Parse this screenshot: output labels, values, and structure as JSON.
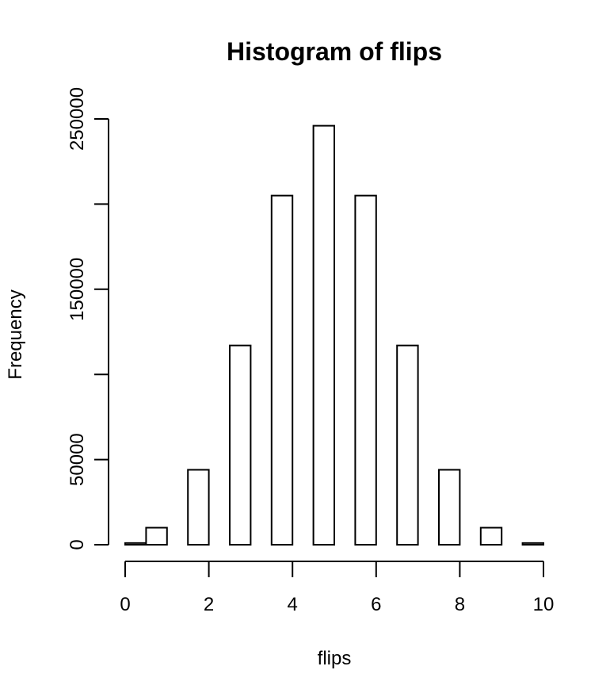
{
  "chart_data": {
    "type": "bar",
    "title": "Histogram of flips",
    "xlabel": "flips",
    "ylabel": "Frequency",
    "bins": [
      {
        "start": 0.0,
        "end": 0.5,
        "value": 1000
      },
      {
        "start": 0.5,
        "end": 1.0,
        "value": 10000
      },
      {
        "start": 1.0,
        "end": 1.5,
        "value": 0
      },
      {
        "start": 1.5,
        "end": 2.0,
        "value": 44000
      },
      {
        "start": 2.0,
        "end": 2.5,
        "value": 0
      },
      {
        "start": 2.5,
        "end": 3.0,
        "value": 117000
      },
      {
        "start": 3.0,
        "end": 3.5,
        "value": 0
      },
      {
        "start": 3.5,
        "end": 4.0,
        "value": 205000
      },
      {
        "start": 4.0,
        "end": 4.5,
        "value": 0
      },
      {
        "start": 4.5,
        "end": 5.0,
        "value": 246000
      },
      {
        "start": 5.0,
        "end": 5.5,
        "value": 0
      },
      {
        "start": 5.5,
        "end": 6.0,
        "value": 205000
      },
      {
        "start": 6.0,
        "end": 6.5,
        "value": 0
      },
      {
        "start": 6.5,
        "end": 7.0,
        "value": 117000
      },
      {
        "start": 7.0,
        "end": 7.5,
        "value": 0
      },
      {
        "start": 7.5,
        "end": 8.0,
        "value": 44000
      },
      {
        "start": 8.0,
        "end": 8.5,
        "value": 0
      },
      {
        "start": 8.5,
        "end": 9.0,
        "value": 10000
      },
      {
        "start": 9.0,
        "end": 9.5,
        "value": 0
      },
      {
        "start": 9.5,
        "end": 10.0,
        "value": 1000
      }
    ],
    "xlim": [
      0,
      10
    ],
    "ylim": [
      0,
      250000
    ],
    "xticks": [
      0,
      2,
      4,
      6,
      8,
      10
    ],
    "yticks": [
      0,
      50000,
      100000,
      150000,
      200000,
      250000
    ],
    "ytick_labels": [
      "0",
      "50000",
      "",
      "150000",
      "",
      "250000"
    ],
    "grid": false,
    "legend": "none"
  }
}
